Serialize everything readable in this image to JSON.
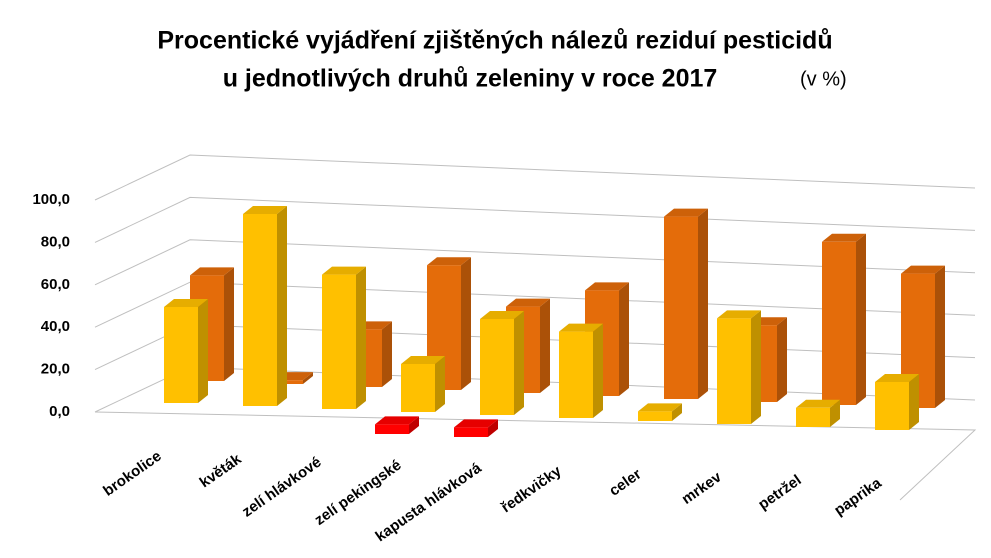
{
  "chart_data": {
    "type": "bar3d",
    "title": "Procentické vyjádření zjištěných nálezů reziduí pesticidů",
    "subtitle": "u jednotlivých druhů zeleniny v roce 2017",
    "unit": "(v %)",
    "categories": [
      "brokolice",
      "květák",
      "zelí hlávkové",
      "zelí pekingské",
      "kapusta hlávková",
      "ředkvičky",
      "celer",
      "mrkev",
      "petržel",
      "paprika"
    ],
    "series": [
      {
        "color": "#ff0000",
        "values": [
          null,
          null,
          null,
          5,
          5,
          null,
          null,
          null,
          null,
          null
        ]
      },
      {
        "color": "#ffc000",
        "values": [
          50,
          100,
          70,
          25,
          50,
          45,
          5,
          55,
          10,
          25
        ]
      },
      {
        "color": "#e46c0a",
        "values": [
          55,
          2,
          30,
          65,
          45,
          55,
          95,
          40,
          85,
          70
        ]
      }
    ],
    "ylim": [
      0,
      100
    ],
    "yticks": [
      {
        "value": 0,
        "label": "0,0"
      },
      {
        "value": 20,
        "label": "20,0"
      },
      {
        "value": 40,
        "label": "40,0"
      },
      {
        "value": 60,
        "label": "60,0"
      },
      {
        "value": 80,
        "label": "80,0"
      },
      {
        "value": 100,
        "label": "100,0"
      }
    ],
    "grid": true
  }
}
